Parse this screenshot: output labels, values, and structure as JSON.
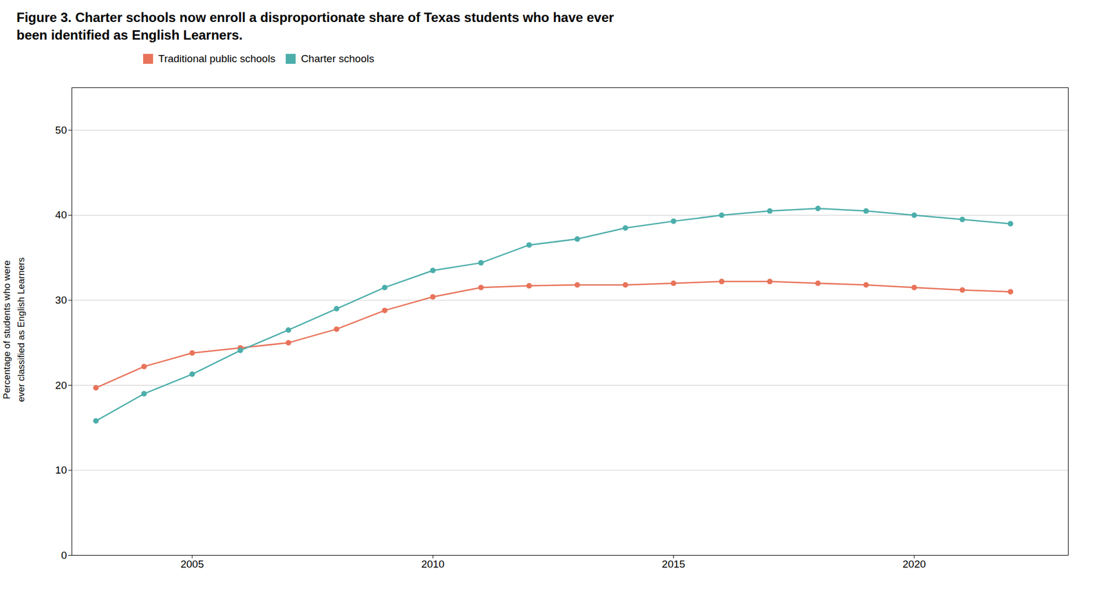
{
  "chart_data": {
    "type": "line",
    "title": "Figure 3. Charter schools now enroll a disproportionate share of Texas students who have ever\nbeen identified as English Learners.",
    "y_label": "Percentage of students who were\never classified as English Learners",
    "x": [
      2003,
      2004,
      2005,
      2006,
      2007,
      2008,
      2009,
      2010,
      2011,
      2012,
      2013,
      2014,
      2015,
      2016,
      2017,
      2018,
      2019,
      2020,
      2021,
      2022
    ],
    "series": [
      {
        "name": "Traditional public schools",
        "color": "#E8735A",
        "marker": "circle",
        "values": [
          19.7,
          22.2,
          23.8,
          24.4,
          25.0,
          26.6,
          28.8,
          30.4,
          31.5,
          31.7,
          31.8,
          31.8,
          32.0,
          32.2,
          32.2,
          32.0,
          31.8,
          31.5,
          31.2,
          31.0
        ]
      },
      {
        "name": "Charter schools",
        "color": "#4CAEAB",
        "marker": "circle",
        "values": [
          15.8,
          19.0,
          21.3,
          24.1,
          26.5,
          29.0,
          31.5,
          33.5,
          34.4,
          36.5,
          37.2,
          38.5,
          39.3,
          40.0,
          40.5,
          40.8,
          40.5,
          40.0,
          39.5,
          39.0
        ]
      }
    ],
    "xlim": [
      2002.5,
      2023.2
    ],
    "xticks": [
      2005,
      2010,
      2015,
      2020
    ],
    "ylim": [
      0,
      55
    ],
    "yticks": [
      0,
      10,
      20,
      30,
      40,
      50
    ],
    "grid": "y",
    "legend": "top"
  }
}
